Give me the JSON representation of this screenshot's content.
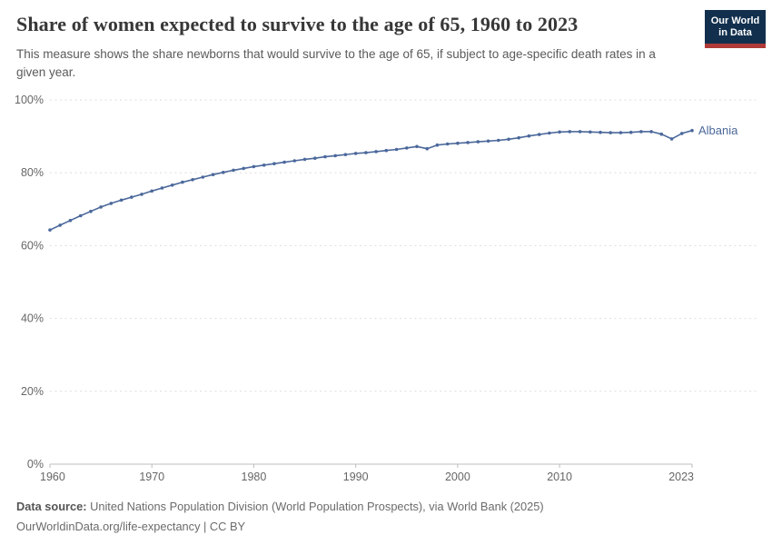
{
  "header": {
    "title": "Share of women expected to survive to the age of 65, 1960 to 2023",
    "subtitle": "This measure shows the share newborns that would survive to the age of 65, if subject to age-specific death rates in a given year.",
    "logo": {
      "line1": "Our World",
      "line2": "in Data"
    }
  },
  "chart_data": {
    "type": "line",
    "title": "Share of women expected to survive to the age of 65, 1960 to 2023",
    "xlabel": "",
    "ylabel": "",
    "grid": "horizontal-dashed",
    "legend_position": "end-of-line-label",
    "xlim": [
      1960,
      2023
    ],
    "ylim": [
      0,
      100
    ],
    "x_ticks": [
      1960,
      1970,
      1980,
      1990,
      2000,
      2010,
      2023
    ],
    "x_tick_labels": [
      "1960",
      "1970",
      "1980",
      "1990",
      "2000",
      "2010",
      "2023"
    ],
    "y_ticks": [
      0,
      20,
      40,
      60,
      80,
      100
    ],
    "y_tick_labels": [
      "0%",
      "20%",
      "40%",
      "60%",
      "80%",
      "100%"
    ],
    "line_color": "#4b689b",
    "end_label": "Albania",
    "x": [
      1960,
      1961,
      1962,
      1963,
      1964,
      1965,
      1966,
      1967,
      1968,
      1969,
      1970,
      1971,
      1972,
      1973,
      1974,
      1975,
      1976,
      1977,
      1978,
      1979,
      1980,
      1981,
      1982,
      1983,
      1984,
      1985,
      1986,
      1987,
      1988,
      1989,
      1990,
      1991,
      1992,
      1993,
      1994,
      1995,
      1996,
      1997,
      1998,
      1999,
      2000,
      2001,
      2002,
      2003,
      2004,
      2005,
      2006,
      2007,
      2008,
      2009,
      2010,
      2011,
      2012,
      2013,
      2014,
      2015,
      2016,
      2017,
      2018,
      2019,
      2020,
      2021,
      2022,
      2023
    ],
    "series": [
      {
        "name": "Albania",
        "values": [
          64.3,
          65.6,
          66.9,
          68.2,
          69.4,
          70.6,
          71.6,
          72.5,
          73.3,
          74.1,
          75.0,
          75.8,
          76.6,
          77.4,
          78.1,
          78.8,
          79.5,
          80.1,
          80.7,
          81.2,
          81.7,
          82.1,
          82.5,
          82.9,
          83.3,
          83.7,
          84.0,
          84.4,
          84.7,
          85.0,
          85.3,
          85.5,
          85.8,
          86.1,
          86.4,
          86.8,
          87.2,
          86.6,
          87.6,
          87.9,
          88.1,
          88.3,
          88.5,
          88.7,
          88.9,
          89.2,
          89.6,
          90.1,
          90.5,
          90.9,
          91.2,
          91.3,
          91.3,
          91.2,
          91.1,
          91.0,
          91.0,
          91.1,
          91.3,
          91.3,
          90.6,
          89.3,
          90.8,
          91.6
        ]
      }
    ]
  },
  "footer": {
    "source_label": "Data source:",
    "source_text": " United Nations Population Division (World Population Prospects), via World Bank (2025)",
    "link_line": "OurWorldinData.org/life-expectancy | CC BY"
  },
  "colors": {
    "line": "#4b689b",
    "logo_bg": "#12304e",
    "logo_red": "#b03a38",
    "gridline": "#dedede",
    "axis": "#bdbdbd",
    "tick_text": "#666666",
    "title_text": "#373737",
    "subtitle_text": "#5a5a5a",
    "footer_text": "#6b6b6b"
  }
}
